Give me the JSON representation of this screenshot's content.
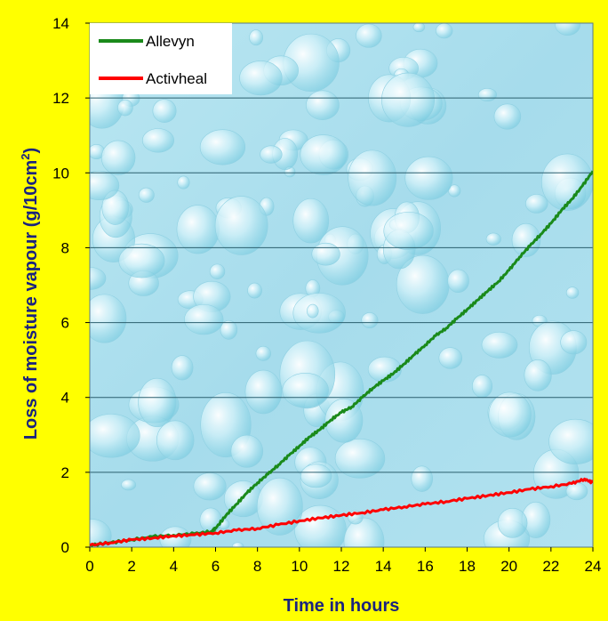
{
  "chart_data": {
    "type": "line",
    "xlabel": "Time in hours",
    "ylabel_main": "Loss of moisture vapour  (g/10cm",
    "ylabel_sup": "2",
    "ylabel_close": ")",
    "xlim": [
      0,
      24
    ],
    "ylim": [
      0,
      14
    ],
    "xticks": [
      "0",
      "2",
      "4",
      "6",
      "8",
      "10",
      "12",
      "14",
      "16",
      "18",
      "20",
      "22",
      "24"
    ],
    "yticks": [
      "0",
      "2",
      "4",
      "6",
      "8",
      "10",
      "12",
      "14"
    ],
    "grid": "horizontal",
    "legend_position": "top-left",
    "background": "water-droplet texture",
    "series": [
      {
        "name": "Allevyn",
        "color": "#1A8A1A",
        "x": [
          0,
          1,
          2,
          3,
          4,
          5,
          5.8,
          6,
          6.5,
          7,
          7.5,
          8,
          8.5,
          9,
          9.5,
          10,
          10.5,
          11,
          11.5,
          12,
          12.5,
          13,
          13.5,
          14,
          14.5,
          15,
          15.5,
          16,
          16.5,
          17,
          17.5,
          18,
          18.5,
          19,
          19.5,
          20,
          20.5,
          21,
          21.5,
          22,
          22.5,
          23,
          23.5,
          24
        ],
        "y": [
          0.05,
          0.12,
          0.2,
          0.28,
          0.32,
          0.36,
          0.42,
          0.5,
          0.85,
          1.15,
          1.45,
          1.72,
          1.95,
          2.2,
          2.45,
          2.7,
          2.95,
          3.15,
          3.4,
          3.6,
          3.75,
          4.0,
          4.25,
          4.45,
          4.65,
          4.9,
          5.15,
          5.4,
          5.65,
          5.85,
          6.1,
          6.35,
          6.6,
          6.85,
          7.1,
          7.4,
          7.75,
          8.05,
          8.35,
          8.65,
          9.0,
          9.3,
          9.65,
          10.05
        ]
      },
      {
        "name": "Activheal",
        "color": "#FF0000",
        "x": [
          0,
          1,
          2,
          3,
          4,
          5,
          6,
          7,
          8,
          9,
          10,
          11,
          12,
          13,
          14,
          15,
          16,
          17,
          18,
          19,
          20,
          21,
          22,
          23,
          23.6,
          24
        ],
        "y": [
          0.05,
          0.12,
          0.2,
          0.24,
          0.3,
          0.33,
          0.38,
          0.45,
          0.5,
          0.6,
          0.7,
          0.78,
          0.85,
          0.92,
          1.0,
          1.08,
          1.15,
          1.22,
          1.3,
          1.38,
          1.46,
          1.55,
          1.62,
          1.7,
          1.82,
          1.72
        ]
      }
    ]
  }
}
